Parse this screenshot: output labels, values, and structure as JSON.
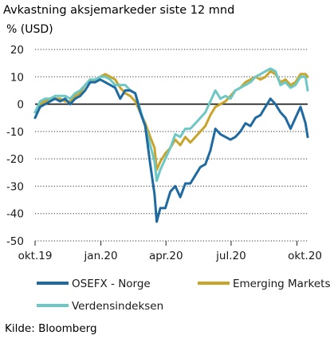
{
  "chart_data": {
    "type": "line",
    "title": "Avkastning aksjemarkeder siste 12 mnd",
    "ylabel": "% (USD)",
    "source": "Kilde: Bloomberg",
    "ylim": [
      -50,
      20
    ],
    "yticks": [
      20,
      10,
      0,
      -10,
      -20,
      -30,
      -40,
      -50
    ],
    "x_range": [
      "2019-10-01",
      "2020-10-16"
    ],
    "xticks": [
      {
        "label": "okt.19",
        "date": "2019-10-01"
      },
      {
        "label": "jan.20",
        "date": "2020-01-01"
      },
      {
        "label": "apr.20",
        "date": "2020-04-01"
      },
      {
        "label": "jul.20",
        "date": "2020-07-01"
      },
      {
        "label": "okt.20",
        "date": "2020-10-01"
      }
    ],
    "grid": "horizontal",
    "legend": "bottom",
    "series": [
      {
        "name": "OSEFX - Norge",
        "color": "#1f6aa0",
        "points": [
          [
            "2019-10-01",
            -5
          ],
          [
            "2019-10-08",
            -1
          ],
          [
            "2019-10-15",
            0
          ],
          [
            "2019-10-22",
            1
          ],
          [
            "2019-10-29",
            2
          ],
          [
            "2019-11-05",
            1
          ],
          [
            "2019-11-12",
            2
          ],
          [
            "2019-11-19",
            0
          ],
          [
            "2019-11-26",
            2
          ],
          [
            "2019-12-03",
            3
          ],
          [
            "2019-12-10",
            5
          ],
          [
            "2019-12-17",
            8
          ],
          [
            "2019-12-24",
            8
          ],
          [
            "2019-12-31",
            9
          ],
          [
            "2020-01-07",
            8
          ],
          [
            "2020-01-14",
            7
          ],
          [
            "2020-01-21",
            6
          ],
          [
            "2020-01-28",
            2
          ],
          [
            "2020-02-04",
            5
          ],
          [
            "2020-02-11",
            5
          ],
          [
            "2020-02-18",
            4
          ],
          [
            "2020-02-25",
            -3
          ],
          [
            "2020-03-03",
            -8
          ],
          [
            "2020-03-10",
            -22
          ],
          [
            "2020-03-16",
            -33
          ],
          [
            "2020-03-19",
            -43
          ],
          [
            "2020-03-24",
            -38
          ],
          [
            "2020-03-31",
            -38
          ],
          [
            "2020-04-07",
            -32
          ],
          [
            "2020-04-14",
            -30
          ],
          [
            "2020-04-21",
            -34
          ],
          [
            "2020-04-28",
            -29
          ],
          [
            "2020-05-05",
            -29
          ],
          [
            "2020-05-12",
            -26
          ],
          [
            "2020-05-19",
            -23
          ],
          [
            "2020-05-26",
            -22
          ],
          [
            "2020-06-02",
            -17
          ],
          [
            "2020-06-09",
            -9
          ],
          [
            "2020-06-16",
            -11
          ],
          [
            "2020-06-23",
            -12
          ],
          [
            "2020-06-30",
            -13
          ],
          [
            "2020-07-07",
            -12
          ],
          [
            "2020-07-14",
            -10
          ],
          [
            "2020-07-21",
            -7
          ],
          [
            "2020-07-28",
            -8
          ],
          [
            "2020-08-04",
            -5
          ],
          [
            "2020-08-11",
            -4
          ],
          [
            "2020-08-18",
            -1
          ],
          [
            "2020-08-25",
            2
          ],
          [
            "2020-09-01",
            0
          ],
          [
            "2020-09-08",
            -3
          ],
          [
            "2020-09-15",
            -5
          ],
          [
            "2020-09-22",
            -9
          ],
          [
            "2020-09-29",
            -5
          ],
          [
            "2020-10-06",
            -1
          ],
          [
            "2020-10-13",
            -7
          ],
          [
            "2020-10-16",
            -12
          ]
        ]
      },
      {
        "name": "Emerging Markets",
        "color": "#c8a42a",
        "points": [
          [
            "2019-10-01",
            -3
          ],
          [
            "2019-10-08",
            0
          ],
          [
            "2019-10-15",
            1
          ],
          [
            "2019-10-22",
            2
          ],
          [
            "2019-10-29",
            2
          ],
          [
            "2019-11-05",
            2
          ],
          [
            "2019-11-12",
            1
          ],
          [
            "2019-11-19",
            1
          ],
          [
            "2019-11-26",
            3
          ],
          [
            "2019-12-03",
            4
          ],
          [
            "2019-12-10",
            7
          ],
          [
            "2019-12-17",
            9
          ],
          [
            "2019-12-24",
            8
          ],
          [
            "2019-12-31",
            10
          ],
          [
            "2020-01-07",
            11
          ],
          [
            "2020-01-14",
            10
          ],
          [
            "2020-01-21",
            9
          ],
          [
            "2020-01-28",
            6
          ],
          [
            "2020-02-04",
            4
          ],
          [
            "2020-02-11",
            3
          ],
          [
            "2020-02-18",
            1
          ],
          [
            "2020-02-25",
            -3
          ],
          [
            "2020-03-03",
            -7
          ],
          [
            "2020-03-10",
            -12
          ],
          [
            "2020-03-16",
            -16
          ],
          [
            "2020-03-19",
            -24
          ],
          [
            "2020-03-24",
            -21
          ],
          [
            "2020-03-31",
            -18
          ],
          [
            "2020-04-07",
            -16
          ],
          [
            "2020-04-14",
            -13
          ],
          [
            "2020-04-21",
            -15
          ],
          [
            "2020-04-28",
            -12
          ],
          [
            "2020-05-05",
            -14
          ],
          [
            "2020-05-12",
            -12
          ],
          [
            "2020-05-19",
            -10
          ],
          [
            "2020-05-26",
            -8
          ],
          [
            "2020-06-02",
            -4
          ],
          [
            "2020-06-09",
            -1
          ],
          [
            "2020-06-16",
            0
          ],
          [
            "2020-06-23",
            1
          ],
          [
            "2020-06-30",
            3
          ],
          [
            "2020-07-07",
            5
          ],
          [
            "2020-07-14",
            6
          ],
          [
            "2020-07-21",
            8
          ],
          [
            "2020-07-28",
            9
          ],
          [
            "2020-08-04",
            10
          ],
          [
            "2020-08-11",
            9
          ],
          [
            "2020-08-18",
            10
          ],
          [
            "2020-08-25",
            12
          ],
          [
            "2020-09-01",
            11
          ],
          [
            "2020-09-08",
            8
          ],
          [
            "2020-09-15",
            9
          ],
          [
            "2020-09-22",
            7
          ],
          [
            "2020-09-29",
            8
          ],
          [
            "2020-10-06",
            11
          ],
          [
            "2020-10-13",
            11
          ],
          [
            "2020-10-16",
            10
          ]
        ]
      },
      {
        "name": "Verdensindeksen",
        "color": "#6dc7c4",
        "points": [
          [
            "2019-10-01",
            -3
          ],
          [
            "2019-10-08",
            1
          ],
          [
            "2019-10-15",
            2
          ],
          [
            "2019-10-22",
            2
          ],
          [
            "2019-10-29",
            3
          ],
          [
            "2019-11-05",
            3
          ],
          [
            "2019-11-12",
            3
          ],
          [
            "2019-11-19",
            2
          ],
          [
            "2019-11-26",
            4
          ],
          [
            "2019-12-03",
            5
          ],
          [
            "2019-12-10",
            7
          ],
          [
            "2019-12-17",
            9
          ],
          [
            "2019-12-24",
            9
          ],
          [
            "2019-12-31",
            10
          ],
          [
            "2020-01-07",
            10
          ],
          [
            "2020-01-14",
            9
          ],
          [
            "2020-01-21",
            7
          ],
          [
            "2020-01-28",
            7
          ],
          [
            "2020-02-04",
            7
          ],
          [
            "2020-02-11",
            5
          ],
          [
            "2020-02-18",
            4
          ],
          [
            "2020-02-25",
            -2
          ],
          [
            "2020-03-03",
            -8
          ],
          [
            "2020-03-10",
            -15
          ],
          [
            "2020-03-16",
            -21
          ],
          [
            "2020-03-19",
            -28
          ],
          [
            "2020-03-24",
            -24
          ],
          [
            "2020-03-31",
            -20
          ],
          [
            "2020-04-07",
            -16
          ],
          [
            "2020-04-14",
            -11
          ],
          [
            "2020-04-21",
            -12
          ],
          [
            "2020-04-28",
            -9
          ],
          [
            "2020-05-05",
            -9
          ],
          [
            "2020-05-12",
            -7
          ],
          [
            "2020-05-19",
            -5
          ],
          [
            "2020-05-26",
            -3
          ],
          [
            "2020-06-02",
            1
          ],
          [
            "2020-06-09",
            5
          ],
          [
            "2020-06-16",
            2
          ],
          [
            "2020-06-23",
            3
          ],
          [
            "2020-06-30",
            2
          ],
          [
            "2020-07-07",
            5
          ],
          [
            "2020-07-14",
            6
          ],
          [
            "2020-07-21",
            7
          ],
          [
            "2020-07-28",
            8
          ],
          [
            "2020-08-04",
            10
          ],
          [
            "2020-08-11",
            11
          ],
          [
            "2020-08-18",
            12
          ],
          [
            "2020-08-25",
            13
          ],
          [
            "2020-09-01",
            12
          ],
          [
            "2020-09-08",
            7
          ],
          [
            "2020-09-15",
            8
          ],
          [
            "2020-09-22",
            6
          ],
          [
            "2020-09-29",
            7
          ],
          [
            "2020-10-06",
            10
          ],
          [
            "2020-10-13",
            10
          ],
          [
            "2020-10-16",
            5
          ]
        ]
      }
    ]
  }
}
